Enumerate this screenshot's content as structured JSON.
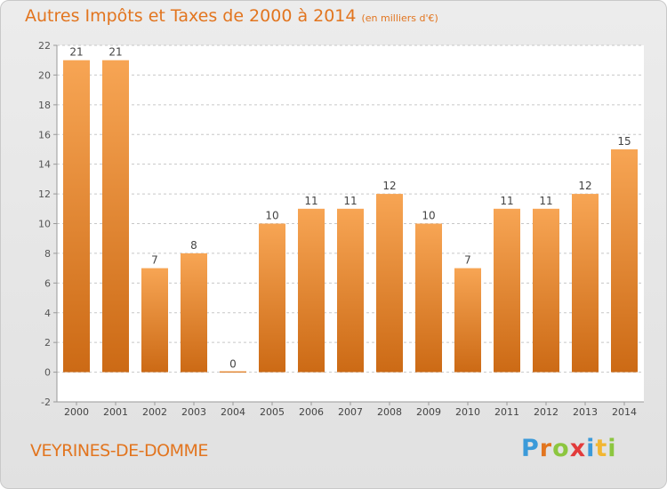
{
  "header": {
    "title": "Autres Impôts et Taxes de 2000 à 2014",
    "subtitle": "(en milliers d'€)"
  },
  "footer": {
    "commune": "VEYRINES-DE-DOMME",
    "brand": "Proxiti",
    "brand_colors": [
      "#3b9ad9",
      "#e2751f",
      "#8cc63f",
      "#e23b3b",
      "#3b9ad9",
      "#f2b632",
      "#8cc63f"
    ]
  },
  "colors": {
    "bar_top": "#f7a554",
    "bar_bottom": "#cc6a15",
    "accent": "#e2751f",
    "grid": "#c7c7c7"
  },
  "chart_data": {
    "type": "bar",
    "title": "Autres Impôts et Taxes de 2000 à 2014",
    "subtitle": "(en milliers d'€)",
    "categories": [
      "2000",
      "2001",
      "2002",
      "2003",
      "2004",
      "2005",
      "2006",
      "2007",
      "2008",
      "2009",
      "2010",
      "2011",
      "2012",
      "2013",
      "2014"
    ],
    "values": [
      21,
      21,
      7,
      8,
      0,
      10,
      11,
      11,
      12,
      10,
      7,
      11,
      11,
      12,
      15
    ],
    "yticks": [
      -2,
      0,
      2,
      4,
      6,
      8,
      10,
      12,
      14,
      16,
      18,
      20,
      22
    ],
    "ylim": [
      -2,
      22
    ],
    "grid": "horizontal dashed",
    "data_labels": true
  }
}
